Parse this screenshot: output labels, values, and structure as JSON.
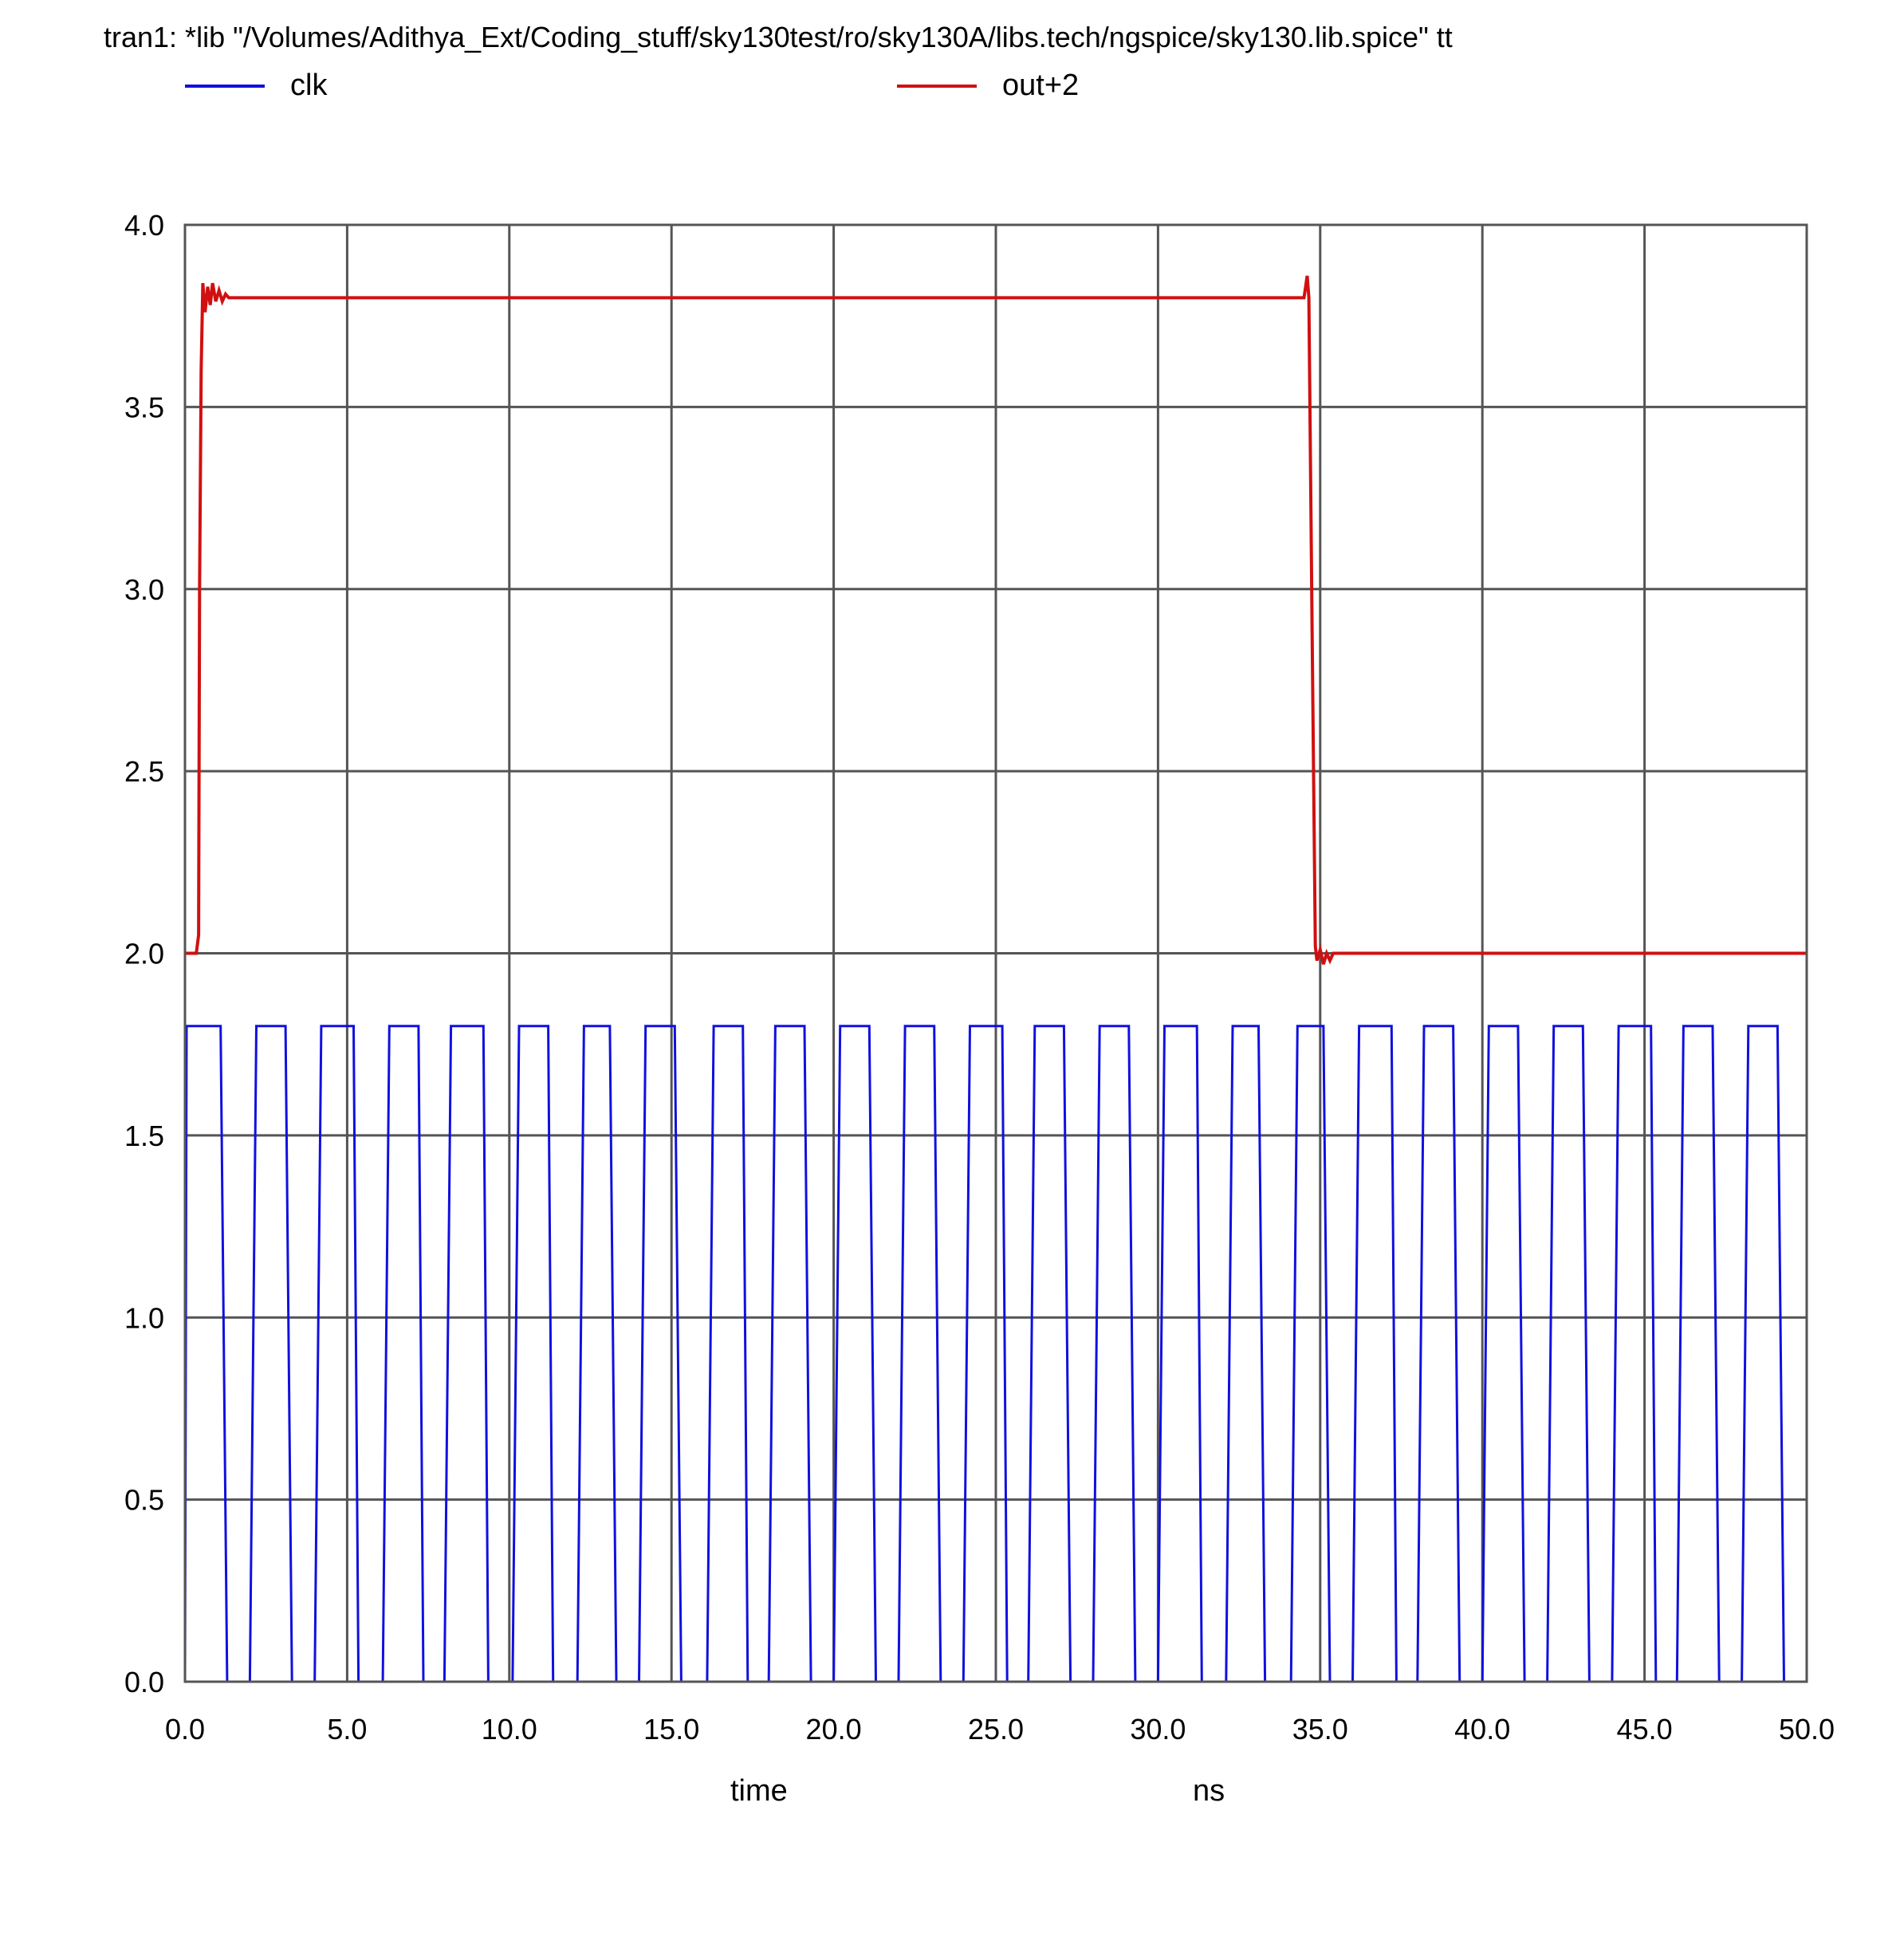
{
  "title": "tran1: *lib \"/Volumes/Adithya_Ext/Coding_stuff/sky130test/ro/sky130A/libs.tech/ngspice/sky130.lib.spice\" tt",
  "xlabel": "time",
  "xunit": "ns",
  "legend": [
    {
      "name": "clk",
      "color": "#1010e0"
    },
    {
      "name": "out+2",
      "color": "#d01010"
    }
  ],
  "chart_data": {
    "type": "line",
    "title": "tran1: *lib \"/Volumes/Adithya_Ext/Coding_stuff/sky130test/ro/sky130A/libs.tech/ngspice/sky130.lib.spice\" tt",
    "xlabel": "time",
    "xunit": "ns",
    "ylabel": "",
    "xlim": [
      0,
      50
    ],
    "ylim": [
      0,
      4
    ],
    "xticks": [
      "0.0",
      "5.0",
      "10.0",
      "15.0",
      "20.0",
      "25.0",
      "30.0",
      "35.0",
      "40.0",
      "45.0",
      "50.0"
    ],
    "yticks": [
      "0.0",
      "0.5",
      "1.0",
      "1.5",
      "2.0",
      "2.5",
      "3.0",
      "3.5",
      "4.0"
    ],
    "grid": true,
    "legend_position": "top",
    "series": [
      {
        "name": "clk",
        "color": "#1010e0",
        "pulses": [
          [
            0.0,
            0.05,
            1.1,
            1.3
          ],
          [
            2.0,
            2.2,
            3.1,
            3.3
          ],
          [
            4.0,
            4.2,
            5.2,
            5.35
          ],
          [
            6.1,
            6.3,
            7.2,
            7.35
          ],
          [
            8.0,
            8.2,
            9.2,
            9.35
          ],
          [
            10.1,
            10.3,
            11.2,
            11.35
          ],
          [
            12.1,
            12.3,
            13.1,
            13.3
          ],
          [
            14.0,
            14.2,
            15.1,
            15.3
          ],
          [
            16.1,
            16.3,
            17.2,
            17.35
          ],
          [
            18.0,
            18.2,
            19.1,
            19.3
          ],
          [
            20.0,
            20.2,
            21.1,
            21.3
          ],
          [
            22.0,
            22.2,
            23.1,
            23.3
          ],
          [
            24.0,
            24.2,
            25.2,
            25.35
          ],
          [
            26.0,
            26.2,
            27.1,
            27.3
          ],
          [
            28.0,
            28.2,
            29.1,
            29.3
          ],
          [
            30.0,
            30.2,
            31.2,
            31.35
          ],
          [
            32.1,
            32.3,
            33.1,
            33.3
          ],
          [
            34.1,
            34.3,
            35.1,
            35.3
          ],
          [
            36.0,
            36.2,
            37.2,
            37.35
          ],
          [
            38.0,
            38.2,
            39.1,
            39.3
          ],
          [
            40.0,
            40.2,
            41.1,
            41.3
          ],
          [
            42.0,
            42.2,
            43.1,
            43.3
          ],
          [
            44.0,
            44.2,
            45.2,
            45.35
          ],
          [
            46.0,
            46.2,
            47.1,
            47.3
          ],
          [
            48.0,
            48.2,
            49.1,
            49.3
          ]
        ],
        "low": 0.0,
        "high": 1.8
      },
      {
        "name": "out+2",
        "color": "#d01010",
        "x": [
          0.0,
          0.35,
          0.42,
          0.45,
          0.5,
          0.55,
          0.62,
          0.7,
          0.78,
          0.85,
          0.95,
          1.05,
          1.15,
          1.25,
          1.35,
          34.5,
          34.6,
          34.65,
          34.75,
          34.85,
          34.9,
          35.0,
          35.1,
          35.2,
          35.3,
          35.4,
          50.0
        ],
        "y": [
          2.0,
          2.0,
          2.05,
          3.0,
          3.6,
          3.84,
          3.76,
          3.83,
          3.78,
          3.84,
          3.79,
          3.82,
          3.79,
          3.81,
          3.8,
          3.8,
          3.86,
          3.8,
          2.9,
          2.02,
          1.98,
          2.01,
          1.97,
          2.0,
          1.98,
          2.0,
          2.0
        ]
      }
    ]
  }
}
